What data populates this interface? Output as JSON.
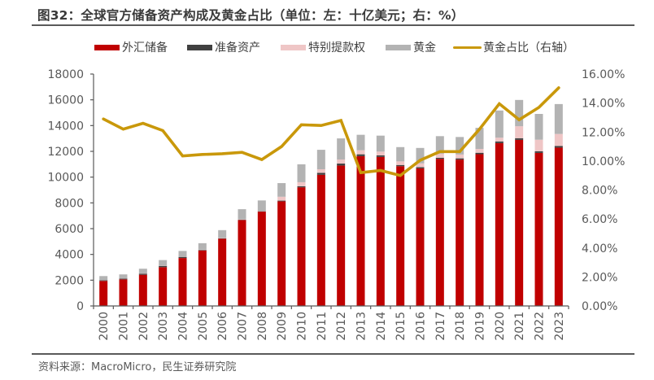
{
  "title": "图32：全球官方储备资产构成及黄金占比（单位：左：十亿美元；右：%）",
  "source": "资料来源：MacroMicro，民生证券研究院",
  "legend": [
    {
      "label": "外汇储备",
      "kind": "bar",
      "color": "#C00000"
    },
    {
      "label": "准备资产",
      "kind": "bar",
      "color": "#404040"
    },
    {
      "label": "特别提款权",
      "kind": "bar",
      "color": "#EFC6C6"
    },
    {
      "label": "黄金",
      "kind": "bar",
      "color": "#B3B3B3"
    },
    {
      "label": "黄金占比（右轴）",
      "kind": "line",
      "color": "#C9980A"
    }
  ],
  "chart_data": {
    "type": "bar",
    "subtype": "stacked bar + line (dual axis)",
    "title": "全球官方储备资产构成及黄金占比（单位：左：十亿美元；右：%）",
    "xlabel": "",
    "ylabel": "十亿美元",
    "y2label": "%",
    "categories": [
      "2000",
      "2001",
      "2002",
      "2003",
      "2004",
      "2005",
      "2006",
      "2007",
      "2008",
      "2009",
      "2010",
      "2011",
      "2012",
      "2013",
      "2014",
      "2015",
      "2016",
      "2017",
      "2018",
      "2019",
      "2020",
      "2021",
      "2022",
      "2023"
    ],
    "ylim": [
      0,
      18000
    ],
    "yticks": [
      "0",
      "2000",
      "4000",
      "6000",
      "8000",
      "10000",
      "12000",
      "14000",
      "16000",
      "18000"
    ],
    "y2lim": [
      0,
      16
    ],
    "y2ticks": [
      "0.00%",
      "2.00%",
      "4.00%",
      "6.00%",
      "8.00%",
      "10.00%",
      "12.00%",
      "14.00%",
      "16.00%"
    ],
    "legend_position": "top",
    "grid": false,
    "series": [
      {
        "name": "外汇储备",
        "type": "bar",
        "stack": "reserves",
        "axis": "left",
        "color": "#C00000",
        "values": [
          1940,
          2060,
          2420,
          3010,
          3720,
          4310,
          5220,
          6670,
          7320,
          8120,
          9210,
          10180,
          10900,
          11630,
          11570,
          10850,
          10680,
          11420,
          11360,
          11780,
          12640,
          12890,
          11880,
          12290
        ]
      },
      {
        "name": "准备资产",
        "type": "bar",
        "stack": "reserves",
        "axis": "left",
        "color": "#404040",
        "values": [
          60,
          70,
          90,
          100,
          90,
          40,
          25,
          20,
          30,
          55,
          80,
          150,
          150,
          140,
          115,
          90,
          90,
          85,
          95,
          110,
          130,
          130,
          125,
          130
        ]
      },
      {
        "name": "特别提款权",
        "type": "bar",
        "stack": "reserves",
        "axis": "left",
        "color": "#EFC6C6",
        "values": [
          20,
          20,
          20,
          20,
          20,
          20,
          20,
          20,
          20,
          300,
          315,
          280,
          315,
          315,
          295,
          280,
          295,
          315,
          300,
          295,
          290,
          930,
          900,
          930
        ]
      },
      {
        "name": "黄金",
        "type": "bar",
        "stack": "reserves",
        "axis": "left",
        "color": "#B3B3B3",
        "values": [
          300,
          300,
          360,
          430,
          440,
          500,
          620,
          800,
          820,
          1060,
          1390,
          1510,
          1640,
          1200,
          1240,
          1110,
          1200,
          1360,
          1360,
          1640,
          2110,
          2040,
          2000,
          2320
        ]
      },
      {
        "name": "黄金占比（右轴）",
        "type": "line",
        "axis": "right",
        "color": "#C9980A",
        "unit": "%",
        "values": [
          12.9,
          12.2,
          12.6,
          12.1,
          10.35,
          10.45,
          10.5,
          10.6,
          10.1,
          11.0,
          12.5,
          12.45,
          12.8,
          9.2,
          9.35,
          9.0,
          10.05,
          10.65,
          10.65,
          12.2,
          13.95,
          12.85,
          13.7,
          15.05
        ]
      }
    ]
  }
}
